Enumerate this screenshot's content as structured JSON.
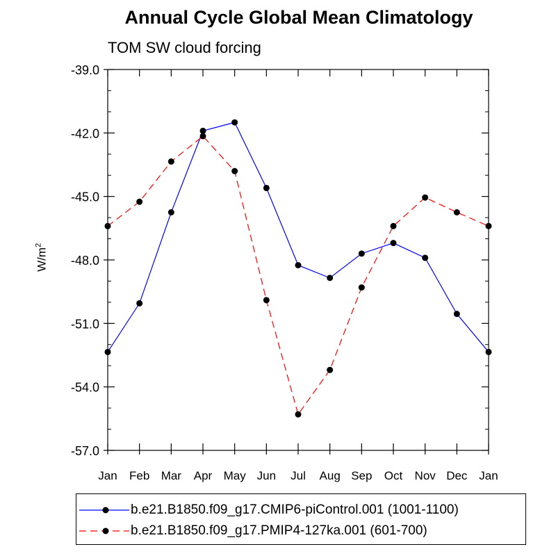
{
  "title": "Annual Cycle Global Mean Climatology",
  "subtitle": "TOM SW cloud forcing",
  "chart_data": {
    "type": "line",
    "title": "Annual Cycle Global Mean Climatology",
    "subtitle": "TOM SW cloud forcing",
    "xlabel": "",
    "ylabel": "W/m",
    "ylabel_superscript": "2",
    "categories": [
      "Jan",
      "Feb",
      "Mar",
      "Apr",
      "May",
      "Jun",
      "Jul",
      "Aug",
      "Sep",
      "Oct",
      "Nov",
      "Dec",
      "Jan"
    ],
    "ylim": [
      -57.0,
      -39.0
    ],
    "yticks": [
      "-39.0",
      "-42.0",
      "-45.0",
      "-48.0",
      "-51.0",
      "-54.0",
      "-57.0"
    ],
    "ytick_values": [
      -39,
      -42,
      -45,
      -48,
      -51,
      -54,
      -57
    ],
    "series": [
      {
        "name": "b.e21.B1850.f09_g17.CMIP6-piControl.001 (1001-1100)",
        "color": "#0000ff",
        "dash": "solid",
        "values": [
          -52.35,
          -50.05,
          -45.75,
          -41.9,
          -41.5,
          -44.6,
          -48.25,
          -48.85,
          -47.7,
          -47.2,
          -47.9,
          -50.55,
          -52.35
        ]
      },
      {
        "name": "b.e21.B1850.f09_g17.PMIP4-127ka.001 (601-700)",
        "color": "#ff0000",
        "dash": "dashed",
        "values": [
          -46.4,
          -45.25,
          -43.35,
          -42.15,
          -43.8,
          -49.9,
          -55.3,
          -53.2,
          -49.3,
          -46.4,
          -45.05,
          -45.75,
          -46.4
        ]
      }
    ]
  }
}
